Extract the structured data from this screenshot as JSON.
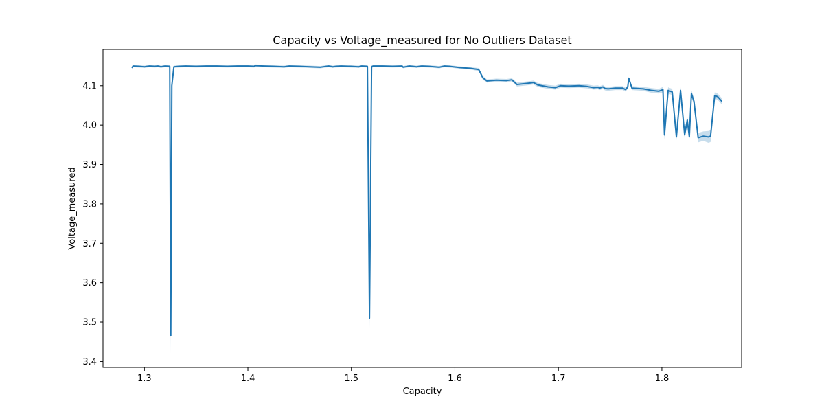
{
  "chart_data": {
    "type": "line",
    "title": "Capacity vs Voltage_measured for No Outliers Dataset",
    "xlabel": "Capacity",
    "ylabel": "Voltage_measured",
    "xlim": [
      1.26,
      1.877
    ],
    "ylim": [
      3.385,
      4.192
    ],
    "xticks": [
      1.3,
      1.4,
      1.5,
      1.6,
      1.7,
      1.8
    ],
    "yticks": [
      3.4,
      3.5,
      3.6,
      3.7,
      3.8,
      3.9,
      4.0,
      4.1
    ],
    "xtick_labels": [
      "1.3",
      "1.4",
      "1.5",
      "1.6",
      "1.7",
      "1.8"
    ],
    "ytick_labels": [
      "3.4",
      "3.5",
      "3.6",
      "3.7",
      "3.8",
      "3.9",
      "4.0",
      "4.1"
    ],
    "grid": false,
    "colors": {
      "line": "#1f77b4",
      "band": "#1f77b4"
    },
    "series": [
      {
        "x": [
          1.288,
          1.289,
          1.295,
          1.3,
          1.305,
          1.31,
          1.313,
          1.316,
          1.32,
          1.3245,
          1.3255,
          1.3265,
          1.3285,
          1.333,
          1.34,
          1.35,
          1.36,
          1.37,
          1.38,
          1.39,
          1.4,
          1.406,
          1.407,
          1.415,
          1.425,
          1.435,
          1.44,
          1.45,
          1.46,
          1.47,
          1.478,
          1.482,
          1.485,
          1.49,
          1.5,
          1.507,
          1.51,
          1.5155,
          1.5175,
          1.5195,
          1.521,
          1.53,
          1.54,
          1.549,
          1.55,
          1.556,
          1.563,
          1.568,
          1.575,
          1.585,
          1.59,
          1.595,
          1.605,
          1.615,
          1.623,
          1.627,
          1.631,
          1.64,
          1.65,
          1.655,
          1.66,
          1.67,
          1.676,
          1.68,
          1.69,
          1.697,
          1.702,
          1.71,
          1.72,
          1.728,
          1.734,
          1.738,
          1.74,
          1.743,
          1.745,
          1.748,
          1.755,
          1.762,
          1.765,
          1.767,
          1.768,
          1.771,
          1.776,
          1.782,
          1.79,
          1.797,
          1.801,
          1.8025,
          1.806,
          1.81,
          1.814,
          1.818,
          1.822,
          1.8245,
          1.8265,
          1.8285,
          1.831,
          1.835,
          1.84,
          1.845,
          1.847,
          1.851,
          1.854,
          1.858
        ],
        "y": [
          4.145,
          4.15,
          4.149,
          4.148,
          4.15,
          4.149,
          4.15,
          4.148,
          4.15,
          4.149,
          3.465,
          4.1,
          4.148,
          4.149,
          4.15,
          4.149,
          4.15,
          4.15,
          4.149,
          4.15,
          4.15,
          4.149,
          4.151,
          4.15,
          4.149,
          4.148,
          4.15,
          4.149,
          4.148,
          4.147,
          4.15,
          4.148,
          4.149,
          4.15,
          4.149,
          4.148,
          4.15,
          4.149,
          3.51,
          4.148,
          4.15,
          4.15,
          4.149,
          4.15,
          4.147,
          4.15,
          4.148,
          4.15,
          4.149,
          4.147,
          4.15,
          4.149,
          4.146,
          4.144,
          4.141,
          4.12,
          4.112,
          4.114,
          4.113,
          4.115,
          4.103,
          4.106,
          4.108,
          4.102,
          4.097,
          4.095,
          4.1,
          4.099,
          4.1,
          4.098,
          4.095,
          4.096,
          4.094,
          4.097,
          4.093,
          4.092,
          4.094,
          4.094,
          4.09,
          4.097,
          4.119,
          4.094,
          4.093,
          4.092,
          4.088,
          4.086,
          4.09,
          3.975,
          4.088,
          4.084,
          3.97,
          4.088,
          3.975,
          4.013,
          3.97,
          4.08,
          4.06,
          3.968,
          3.972,
          3.97,
          3.972,
          4.075,
          4.072,
          4.06
        ],
        "band": [
          0.004,
          0.003,
          0.003,
          0.003,
          0.003,
          0.003,
          0.003,
          0.003,
          0.003,
          0.003,
          0.045,
          0.015,
          0.003,
          0.003,
          0.003,
          0.003,
          0.003,
          0.003,
          0.003,
          0.003,
          0.003,
          0.003,
          0.003,
          0.003,
          0.003,
          0.003,
          0.003,
          0.003,
          0.003,
          0.003,
          0.003,
          0.003,
          0.003,
          0.003,
          0.003,
          0.003,
          0.003,
          0.003,
          0.025,
          0.004,
          0.003,
          0.003,
          0.003,
          0.003,
          0.003,
          0.003,
          0.003,
          0.003,
          0.003,
          0.003,
          0.003,
          0.003,
          0.003,
          0.003,
          0.004,
          0.005,
          0.004,
          0.004,
          0.004,
          0.004,
          0.005,
          0.005,
          0.005,
          0.005,
          0.005,
          0.005,
          0.005,
          0.005,
          0.005,
          0.005,
          0.005,
          0.005,
          0.005,
          0.005,
          0.005,
          0.005,
          0.005,
          0.005,
          0.005,
          0.005,
          0.003,
          0.005,
          0.005,
          0.005,
          0.006,
          0.006,
          0.007,
          0.012,
          0.008,
          0.008,
          0.008,
          0.008,
          0.01,
          0.01,
          0.01,
          0.008,
          0.01,
          0.012,
          0.012,
          0.015,
          0.015,
          0.008,
          0.008,
          0.008
        ]
      }
    ]
  }
}
